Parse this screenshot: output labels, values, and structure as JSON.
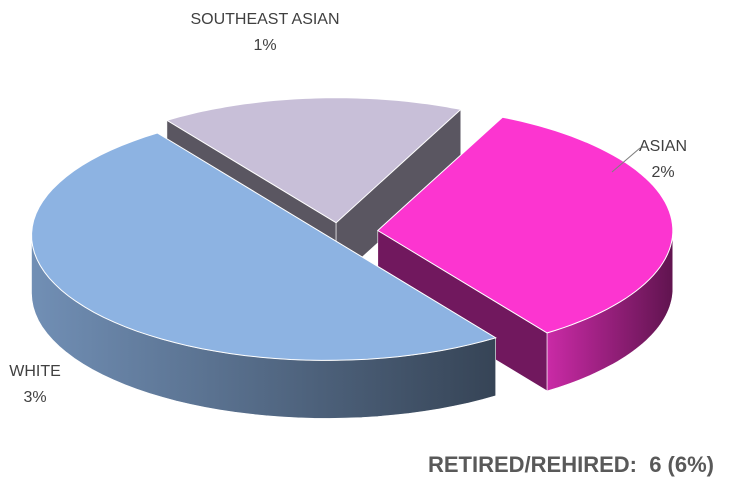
{
  "chart_data": {
    "type": "pie",
    "categories": [
      "ASIAN",
      "WHITE",
      "SOUTHEAST ASIAN"
    ],
    "values": [
      2,
      3,
      1
    ],
    "value_labels": [
      "2%",
      "3%",
      "1%"
    ],
    "colors": [
      "#fc35d0",
      "#8db3e2",
      "#c8bfd8"
    ],
    "footer": "RETIRED/REHIRED:  6 (6%)"
  }
}
